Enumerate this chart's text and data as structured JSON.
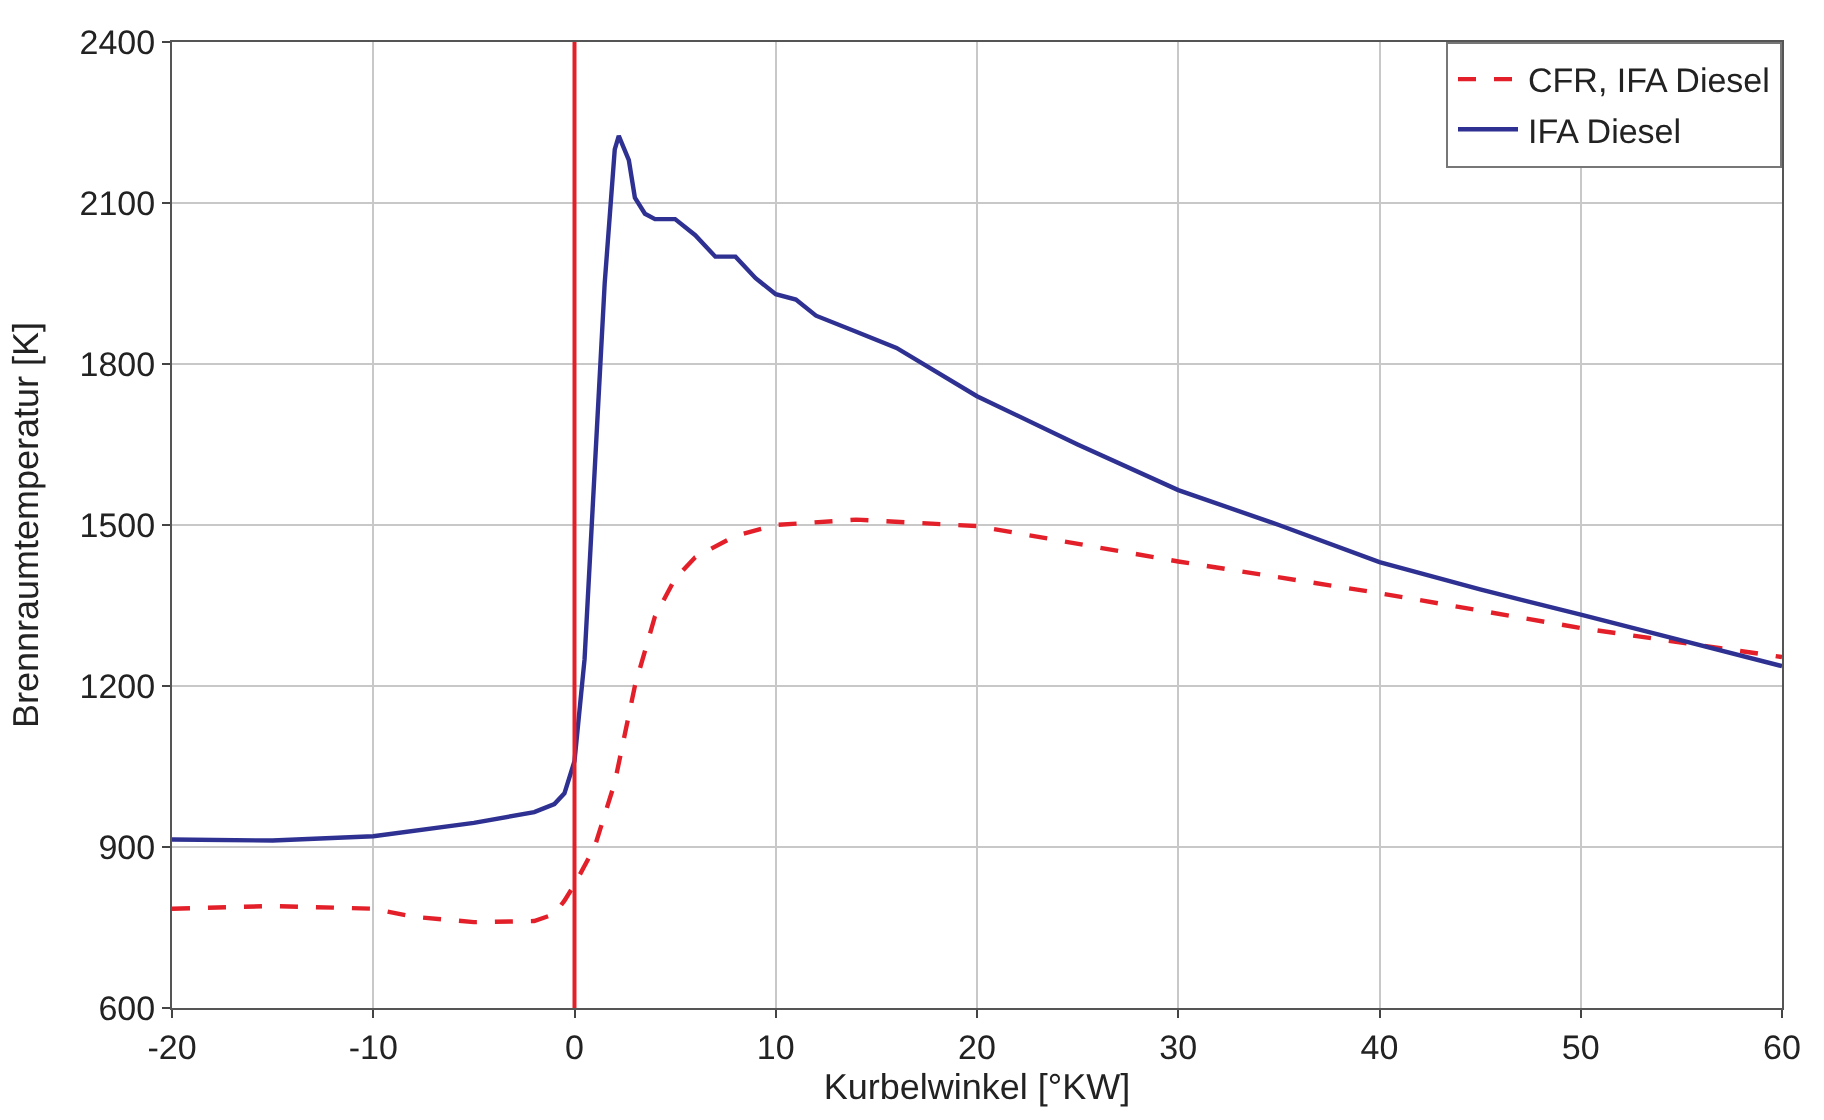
{
  "chart_data": {
    "type": "line",
    "xlabel": "Kurbelwinkel [°KW]",
    "ylabel": "Brennraumtemperatur [K]",
    "xlim": [
      -20,
      60
    ],
    "xticks": [
      -20,
      -10,
      0,
      10,
      20,
      30,
      40,
      50,
      60
    ],
    "ylim": [
      600,
      2400
    ],
    "yticks": [
      600,
      900,
      1200,
      1500,
      1800,
      2100,
      2400
    ],
    "grid": true,
    "legend": "top right",
    "marker": "none",
    "ref_lines": [
      {
        "axis": "x",
        "value": 0,
        "color": "#e3202a",
        "line_style": "solid"
      }
    ],
    "series": [
      {
        "name": "CFR, IFA Diesel",
        "color": "#e3202a",
        "line_style": "dashed",
        "x": [
          -20,
          -15,
          -10,
          -8,
          -5,
          -2,
          -1,
          -0.5,
          0,
          1,
          2,
          3,
          4,
          5,
          6,
          8,
          10,
          14,
          20,
          30,
          40,
          50,
          60
        ],
        "values": [
          785,
          790,
          785,
          770,
          760,
          762,
          775,
          800,
          830,
          900,
          1020,
          1200,
          1330,
          1400,
          1440,
          1480,
          1500,
          1510,
          1498,
          1432,
          1373,
          1308,
          1254
        ]
      },
      {
        "name": "IFA Diesel",
        "color": "#2e3192",
        "line_style": "solid",
        "x": [
          -20,
          -15,
          -10,
          -5,
          -2,
          -1,
          -0.5,
          0,
          0.5,
          1,
          1.5,
          2,
          2.2,
          2.7,
          3,
          3.5,
          4,
          5,
          6,
          7,
          8,
          9,
          10,
          11,
          12,
          14,
          16,
          20,
          25,
          30,
          35,
          40,
          45,
          50,
          55,
          60
        ],
        "values": [
          914,
          912,
          920,
          945,
          965,
          980,
          1000,
          1060,
          1250,
          1600,
          1950,
          2200,
          2225,
          2180,
          2110,
          2080,
          2070,
          2070,
          2040,
          2000,
          2000,
          1960,
          1930,
          1920,
          1890,
          1860,
          1830,
          1740,
          1650,
          1565,
          1500,
          1431,
          1380,
          1333,
          1285,
          1237
        ]
      }
    ]
  }
}
